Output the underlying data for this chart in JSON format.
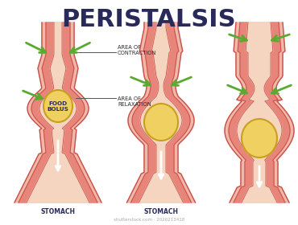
{
  "title": "PERISTALSIS",
  "title_fontsize": 22,
  "title_fontweight": "bold",
  "title_color": "#2a2a5a",
  "bg_color": "#ffffff",
  "labels": {
    "area_of_contraction": "AREA OF\nCONTRACTION",
    "area_of_relaxation": "AREA OF\nRELAXATION",
    "food_bolus": "FOOD\nBOLUS",
    "stomach1": "STOMACH",
    "stomach2": "STOMACH",
    "watermark": "shutterstock.com · 2026213418"
  },
  "colors": {
    "muscle_outer": "#c8504a",
    "muscle_inner": "#e8857a",
    "muscle_light": "#f0b8a8",
    "canal_fill": "#f5d5c0",
    "bolus_fill": "#f0d060",
    "bolus_stroke": "#c8a020",
    "arrow_green": "#5aaa30",
    "label_line": "#555555",
    "text_dark": "#2a2a2a"
  }
}
